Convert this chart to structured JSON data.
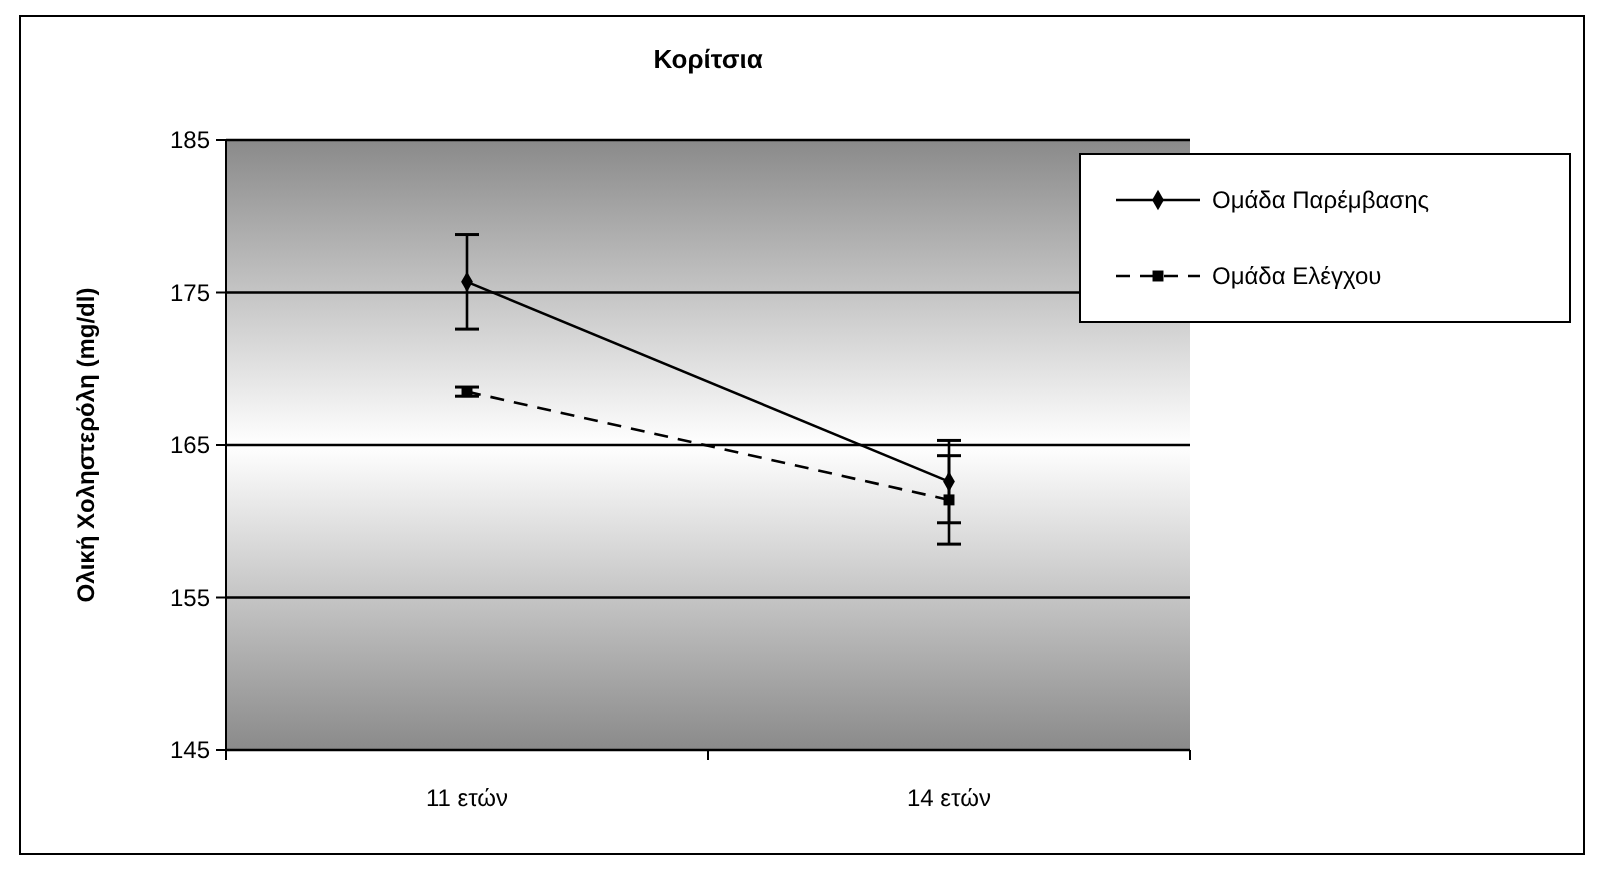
{
  "chart_data": {
    "type": "line",
    "title": "Κορίτσια",
    "ylabel": "Ολική Χοληστερόλη (mg/dl)",
    "categories": [
      "11 ετών",
      "14 ετών"
    ],
    "series": [
      {
        "name": "Ομάδα Παρέμβασης",
        "color": "#000000",
        "values": [
          175.7,
          162.6
        ],
        "errors": [
          3.1,
          2.7
        ],
        "marker": "diamond",
        "line_style": "solid"
      },
      {
        "name": "Ομάδα Ελέγχου",
        "color": "#000000",
        "values": [
          168.5,
          161.4
        ],
        "errors": [
          0.3,
          2.9
        ],
        "marker": "square",
        "line_style": "dashed"
      }
    ],
    "ylim": [
      145,
      185
    ],
    "yticks": [
      145,
      155,
      165,
      175,
      185
    ],
    "grid": "y",
    "legend": "top right"
  }
}
